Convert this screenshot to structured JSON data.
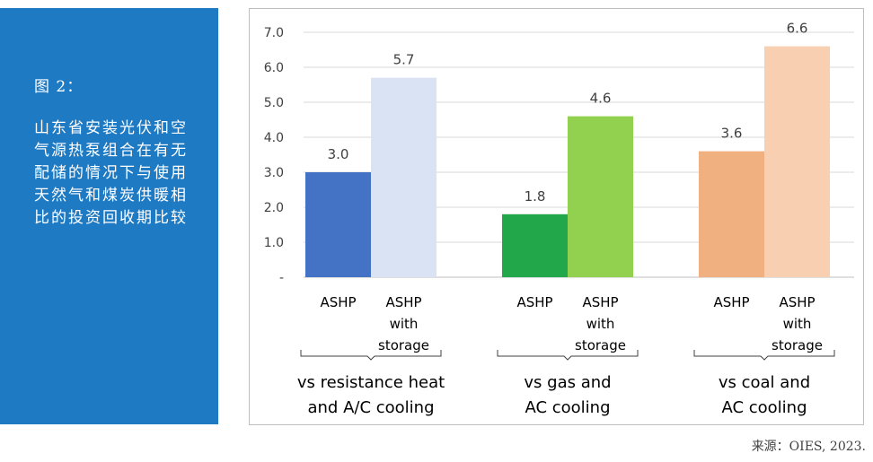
{
  "sidebar": {
    "figure_label": "图 2：",
    "description": "山东省安装光伏和空气源热泵组合在有无配储的情况下与使用天然气和煤炭供暖相比的投资回收期比较"
  },
  "source": "来源：OIES, 2023.",
  "chart_data": {
    "type": "bar",
    "ylim": [
      0,
      7
    ],
    "yticks": [
      "-",
      "1.0",
      "2.0",
      "3.0",
      "4.0",
      "5.0",
      "6.0",
      "7.0"
    ],
    "groups": [
      {
        "label_lines": [
          "vs resistance heat",
          "and A/C cooling"
        ],
        "bars": [
          {
            "label_lines": [
              "ASHP"
            ],
            "value": 3.0,
            "value_label": "3.0",
            "color": "#4472c4"
          },
          {
            "label_lines": [
              "ASHP",
              "with",
              "storage"
            ],
            "value": 5.7,
            "value_label": "5.7",
            "color": "#dae3f3"
          }
        ]
      },
      {
        "label_lines": [
          "vs gas and",
          "AC cooling"
        ],
        "bars": [
          {
            "label_lines": [
              "ASHP"
            ],
            "value": 1.8,
            "value_label": "1.8",
            "color": "#22a84a"
          },
          {
            "label_lines": [
              "ASHP",
              "with",
              "storage"
            ],
            "value": 4.6,
            "value_label": "4.6",
            "color": "#92d050"
          }
        ]
      },
      {
        "label_lines": [
          "vs coal and",
          "AC cooling"
        ],
        "bars": [
          {
            "label_lines": [
              "ASHP"
            ],
            "value": 3.6,
            "value_label": "3.6",
            "color": "#f0b080"
          },
          {
            "label_lines": [
              "ASHP",
              "with",
              "storage"
            ],
            "value": 6.6,
            "value_label": "6.6",
            "color": "#f8cfb0"
          }
        ]
      }
    ]
  }
}
